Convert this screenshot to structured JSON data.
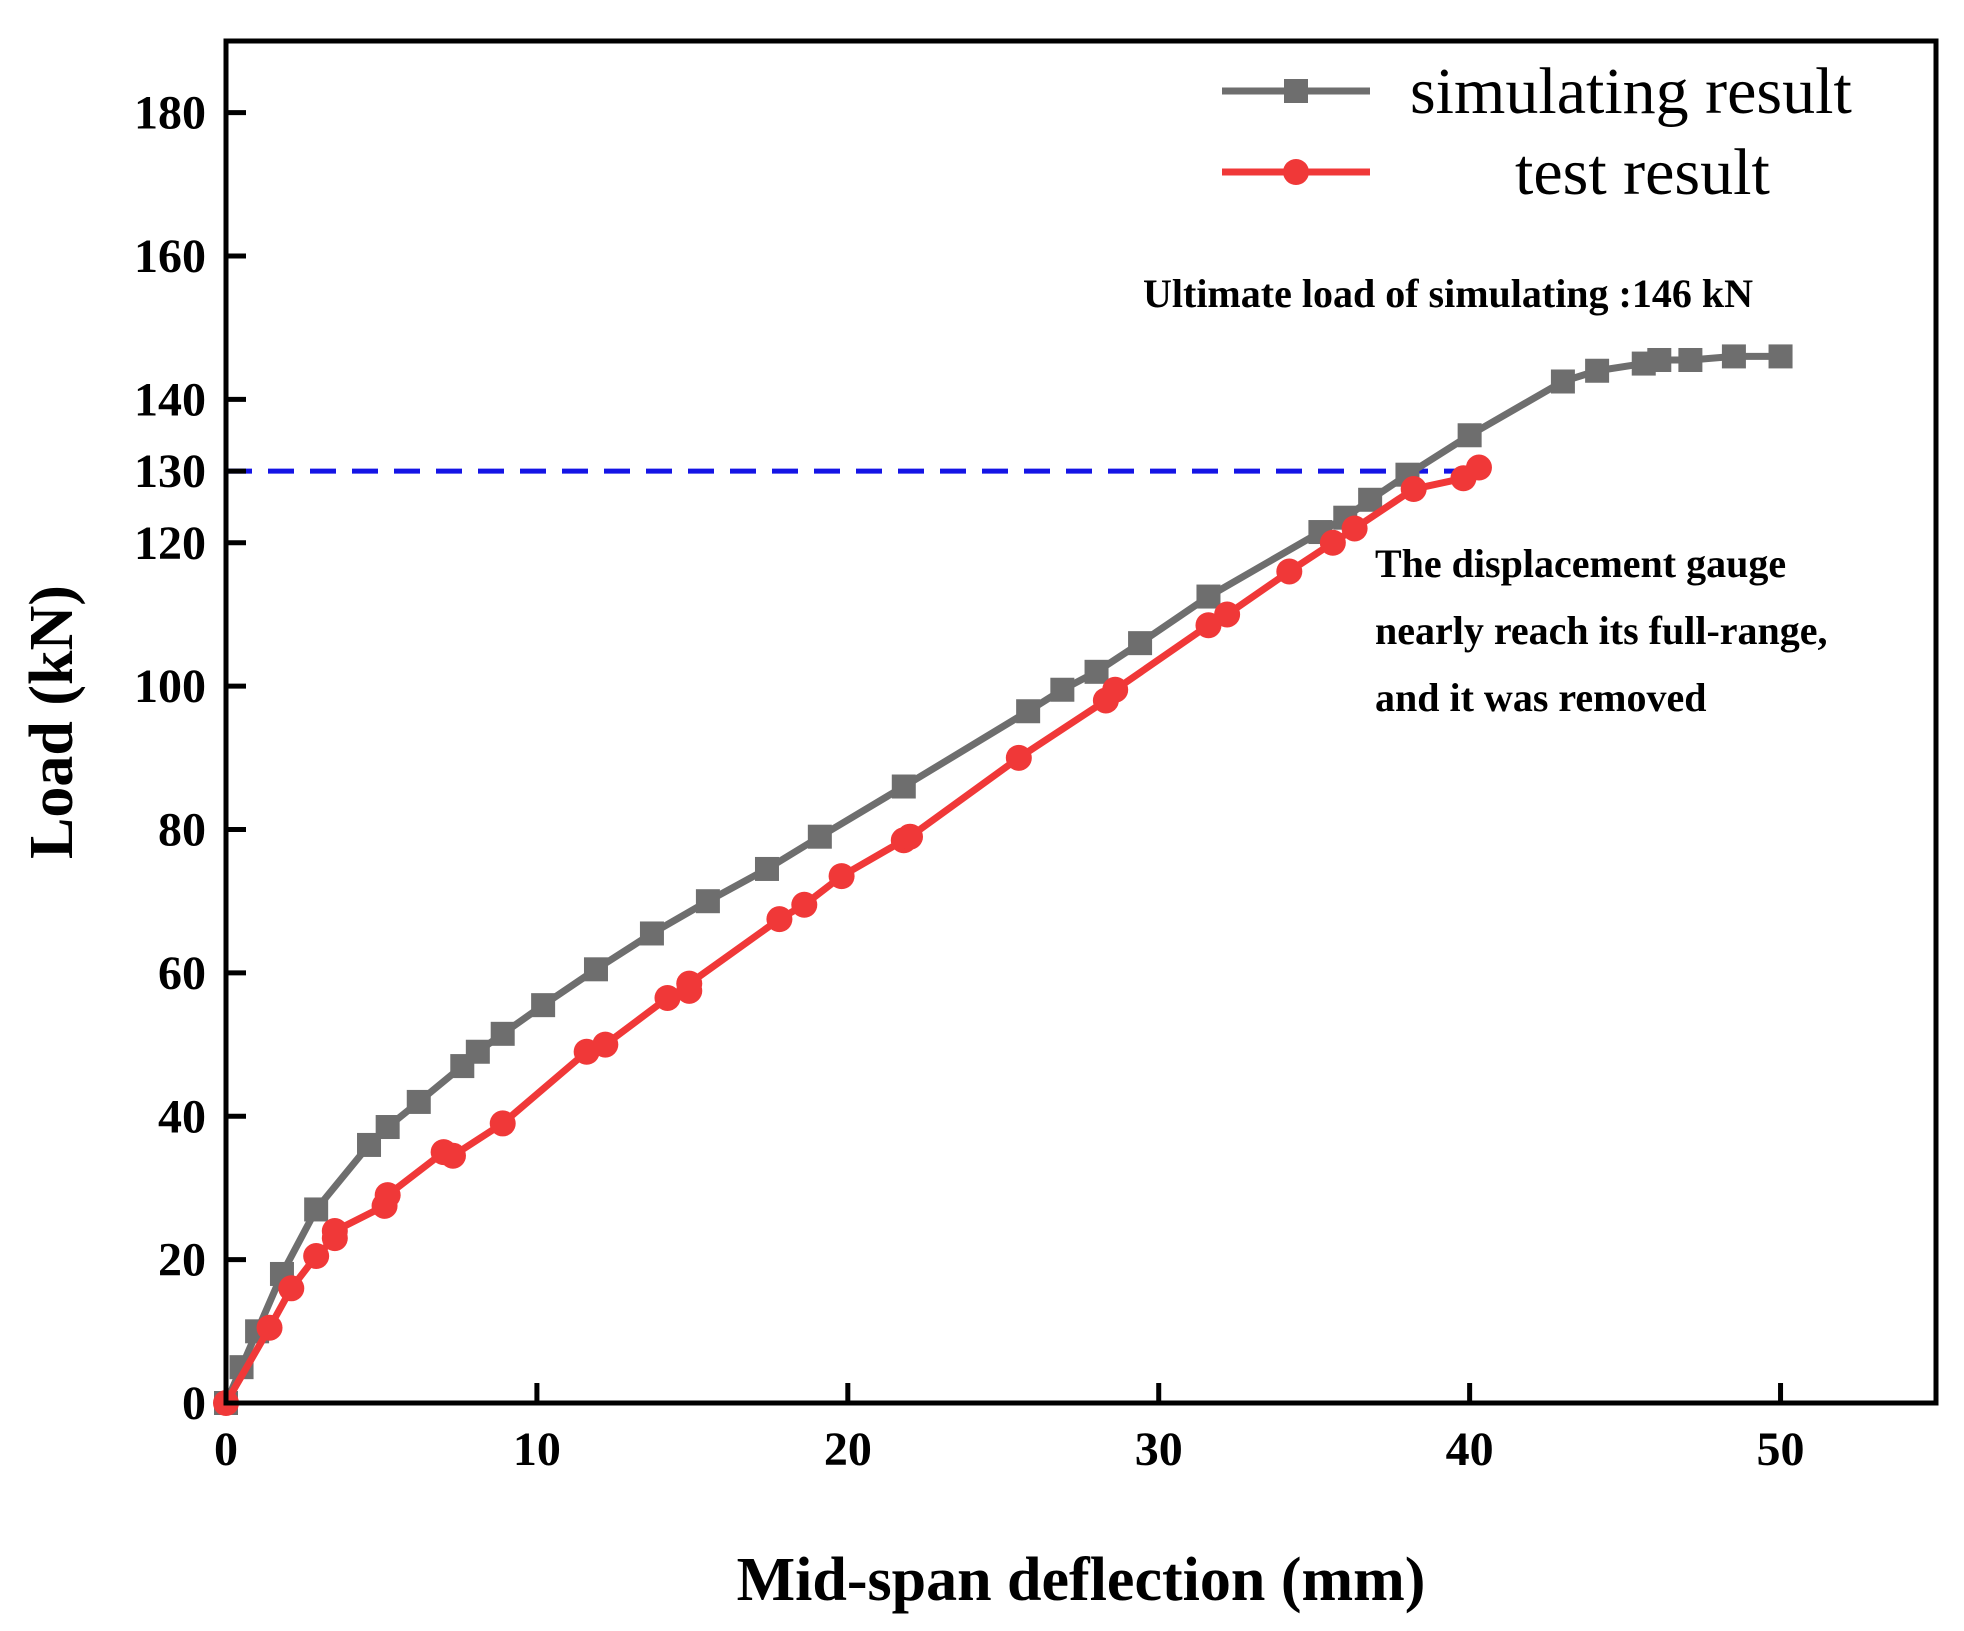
{
  "chart_data": {
    "type": "line",
    "xlabel": "Mid-span deflection (mm)",
    "ylabel": "Load (kN)",
    "xlim": [
      0,
      55
    ],
    "ylim": [
      0,
      190
    ],
    "x_ticks": [
      0,
      10,
      20,
      30,
      40,
      50
    ],
    "y_ticks": [
      0,
      20,
      40,
      60,
      80,
      100,
      120,
      130,
      140,
      160,
      180
    ],
    "grid": false,
    "legend_position": "top-right",
    "series": [
      {
        "name": "simulating result",
        "color": "#6e6e6e",
        "marker": "square",
        "points": [
          [
            0,
            0
          ],
          [
            0.5,
            5
          ],
          [
            1,
            10
          ],
          [
            1.8,
            18
          ],
          [
            2.9,
            27
          ],
          [
            4.6,
            36
          ],
          [
            5.2,
            38.5
          ],
          [
            6.2,
            42
          ],
          [
            7.6,
            47
          ],
          [
            8.1,
            49
          ],
          [
            8.9,
            51.5
          ],
          [
            10.2,
            55.5
          ],
          [
            11.9,
            60.5
          ],
          [
            13.7,
            65.5
          ],
          [
            15.5,
            70
          ],
          [
            17.4,
            74.5
          ],
          [
            19.1,
            79
          ],
          [
            21.8,
            86
          ],
          [
            25.8,
            96.5
          ],
          [
            26.9,
            99.5
          ],
          [
            28,
            102
          ],
          [
            29.4,
            106
          ],
          [
            31.6,
            112.5
          ],
          [
            35.2,
            121.5
          ],
          [
            36,
            123.5
          ],
          [
            36.8,
            126
          ],
          [
            38,
            129.5
          ],
          [
            40,
            135
          ],
          [
            43,
            142.5
          ],
          [
            44.1,
            144
          ],
          [
            45.6,
            145
          ],
          [
            46.1,
            145.5
          ],
          [
            47.1,
            145.5
          ],
          [
            48.5,
            146
          ],
          [
            50,
            146
          ]
        ]
      },
      {
        "name": "test result",
        "color": "#f03838",
        "marker": "circle",
        "points": [
          [
            0,
            0
          ],
          [
            1.4,
            10.5
          ],
          [
            2.1,
            16
          ],
          [
            2.9,
            20.5
          ],
          [
            3.5,
            23
          ],
          [
            3.5,
            24
          ],
          [
            5.1,
            27.5
          ],
          [
            5.2,
            29
          ],
          [
            7,
            35
          ],
          [
            7.3,
            34.5
          ],
          [
            8.9,
            39
          ],
          [
            11.6,
            49
          ],
          [
            12.2,
            50
          ],
          [
            14.2,
            56.5
          ],
          [
            14.9,
            57.5
          ],
          [
            14.9,
            58.5
          ],
          [
            17.8,
            67.5
          ],
          [
            18.6,
            69.5
          ],
          [
            19.8,
            73.5
          ],
          [
            21.8,
            78.5
          ],
          [
            22,
            79
          ],
          [
            25.5,
            90
          ],
          [
            28.3,
            98
          ],
          [
            28.6,
            99.5
          ],
          [
            31.6,
            108.5
          ],
          [
            32.2,
            110
          ],
          [
            34.2,
            116
          ],
          [
            35.6,
            120
          ],
          [
            36.3,
            122
          ],
          [
            38.2,
            127.5
          ],
          [
            39.8,
            129
          ],
          [
            40.3,
            130.5
          ]
        ]
      }
    ],
    "reference_line": {
      "y": 130,
      "color": "#1414e6",
      "x_start": 0,
      "x_end": 40
    },
    "annotations": [
      {
        "id": "ultimate",
        "text": "Ultimate load of simulating :146 kN"
      },
      {
        "id": "gauge",
        "lines": [
          "The displacement gauge",
          "nearly reach its full-range,",
          "and it was removed"
        ]
      }
    ]
  }
}
